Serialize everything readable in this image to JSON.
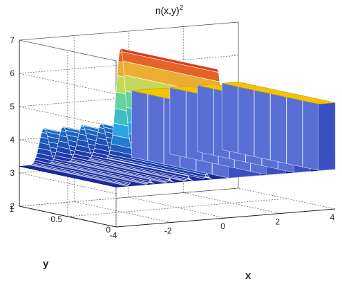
{
  "chart_data": {
    "type": "surface",
    "title_base": "n(x,y)",
    "title_exponent": "2",
    "xlabel": "x",
    "ylabel": "y",
    "zlabel": "",
    "xlim": [
      -4,
      4
    ],
    "ylim": [
      0,
      1
    ],
    "zlim": [
      2,
      7
    ],
    "x_ticks": [
      "-4",
      "-2",
      "0",
      "2",
      "4"
    ],
    "y_ticks": [
      "0",
      "0.5",
      "1"
    ],
    "z_ticks": [
      "2",
      "3",
      "4",
      "5",
      "6",
      "7"
    ],
    "grid": true,
    "base_level": 3.2,
    "gaussian_bumps": [
      {
        "x": -3.1,
        "peak": 4.3
      },
      {
        "x": -2.4,
        "peak": 4.3
      },
      {
        "x": -1.7,
        "peak": 4.3
      },
      {
        "x": -1.0,
        "peak": 4.3
      },
      {
        "x": -0.3,
        "peak": 6.5
      }
    ],
    "plateaus": [
      {
        "x_start": 0.1,
        "x_end": 1.3,
        "height": 5.2
      },
      {
        "x_start": 1.5,
        "x_end": 2.2,
        "height": 5.2
      },
      {
        "x_start": 2.5,
        "x_end": 3.1,
        "height": 5.2
      },
      {
        "x_start": 3.4,
        "x_end": 4.0,
        "height": 5.2
      }
    ],
    "colors": {
      "base": "#1a2a9e",
      "wall": "#3b4fc0",
      "top": "#f5c400",
      "peak_top": "#d9301c"
    }
  }
}
